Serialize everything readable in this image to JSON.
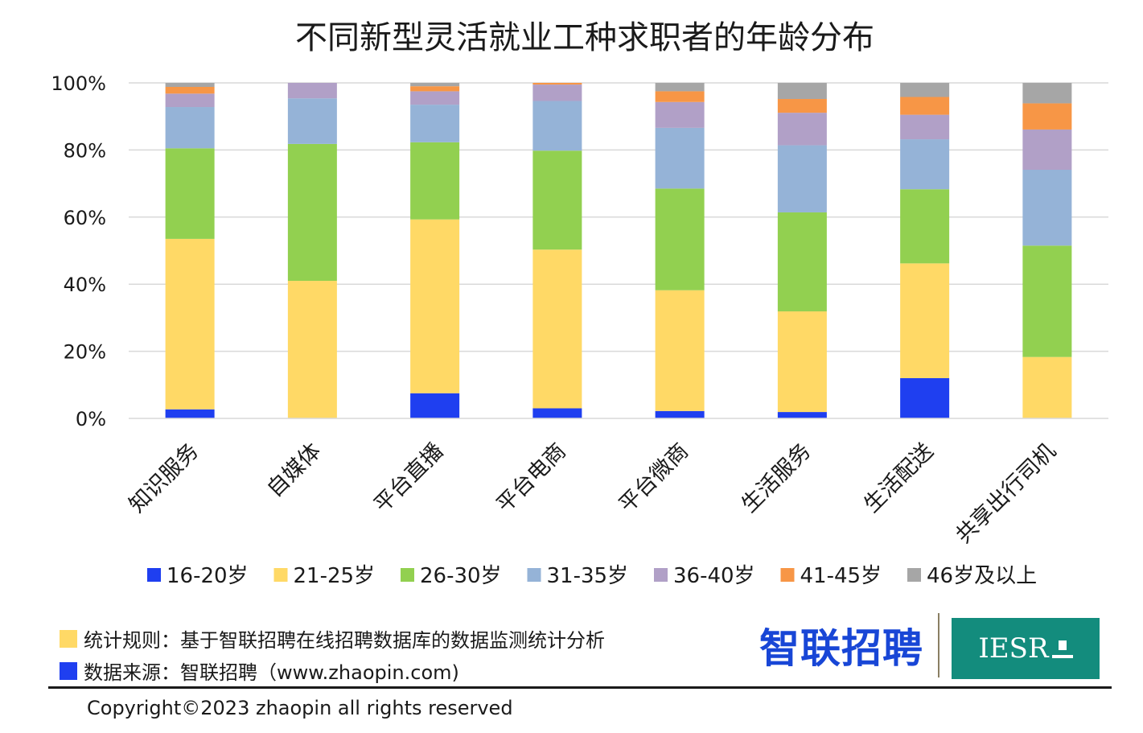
{
  "chart_data": {
    "type": "bar",
    "stacked": true,
    "percent_stacked": true,
    "title": "不同新型灵活就业工种求职者的年龄分布",
    "categories": [
      "知识服务",
      "自媒体",
      "平台直播",
      "平台电商",
      "平台微商",
      "生活服务",
      "生活配送",
      "共享出行司机"
    ],
    "yticks": [
      "0%",
      "20%",
      "40%",
      "60%",
      "80%",
      "100%"
    ],
    "ylim": [
      0,
      100
    ],
    "grid": true,
    "legend_position": "bottom",
    "series": [
      {
        "name": "16-20岁",
        "color": "#1f3ff0",
        "values": [
          2.7,
          0,
          7.5,
          3.0,
          2.2,
          1.9,
          12.0,
          0
        ]
      },
      {
        "name": "21-25岁",
        "color": "#ffd966",
        "values": [
          50.8,
          41.0,
          51.8,
          47.3,
          36.0,
          30.0,
          34.2,
          18.3
        ]
      },
      {
        "name": "26-30岁",
        "color": "#92d050",
        "values": [
          27.0,
          40.8,
          23.0,
          29.5,
          30.3,
          29.5,
          22.1,
          33.2
        ]
      },
      {
        "name": "31-35岁",
        "color": "#95b3d7",
        "values": [
          12.3,
          13.6,
          11.2,
          14.8,
          18.1,
          20.0,
          14.9,
          22.6
        ]
      },
      {
        "name": "36-40岁",
        "color": "#b1a0c7",
        "values": [
          4.0,
          4.6,
          4.0,
          4.9,
          7.7,
          9.7,
          7.3,
          12.0
        ]
      },
      {
        "name": "41-45岁",
        "color": "#f79646",
        "values": [
          2.0,
          0,
          1.5,
          0.5,
          3.2,
          4.1,
          5.3,
          7.8
        ]
      },
      {
        "name": "46岁及以上",
        "color": "#a6a6a6",
        "values": [
          1.2,
          0,
          1.0,
          0,
          2.5,
          4.8,
          4.2,
          6.1
        ]
      }
    ]
  },
  "notes": {
    "rule": "统计规则：基于智联招聘在线招聘数据库的数据监测统计分析",
    "rule_color": "#ffd966",
    "source": "数据来源：智联招聘（www.zhaopin.com)",
    "source_color": "#1f3ff0"
  },
  "brand": {
    "zhaopin_logo": "智联招聘",
    "iesr_logo": "IESR"
  },
  "copyright": "Copyright©2023 zhaopin all rights reserved"
}
